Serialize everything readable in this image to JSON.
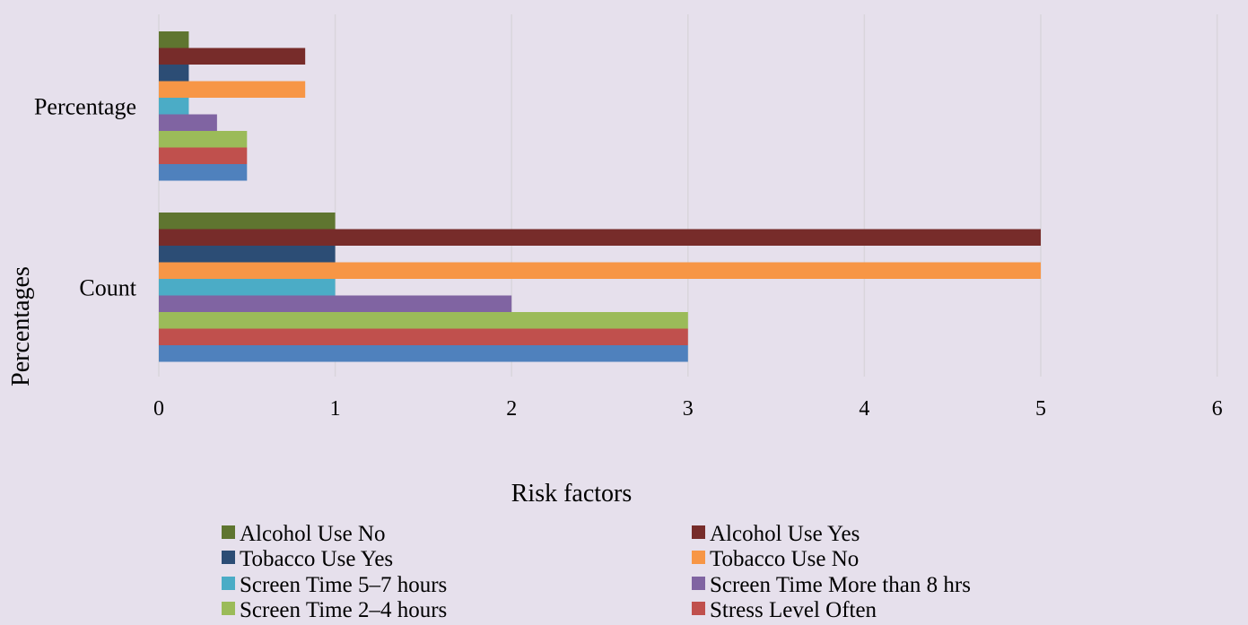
{
  "chart_data": {
    "type": "bar",
    "orientation": "horizontal",
    "categories": [
      "Count",
      "Percentage"
    ],
    "xlabel": "Risk factors",
    "ylabel": "Percentages",
    "xlim": [
      0,
      6
    ],
    "xticks": [
      0,
      1,
      2,
      3,
      4,
      5,
      6
    ],
    "grid": "vertical",
    "legend_position": "bottom",
    "series": [
      {
        "name": "Alcohol Use No",
        "values": [
          1,
          0.17
        ],
        "color": "#5f7530"
      },
      {
        "name": "Alcohol Use Yes",
        "values": [
          5,
          0.83
        ],
        "color": "#772c2a"
      },
      {
        "name": "Tobacco Use Yes",
        "values": [
          1,
          0.17
        ],
        "color": "#2c4d75"
      },
      {
        "name": "Tobacco Use No",
        "values": [
          5,
          0.83
        ],
        "color": "#f79646"
      },
      {
        "name": "Screen Time 5–7 hours",
        "values": [
          1,
          0.17
        ],
        "color": "#4bacc6"
      },
      {
        "name": "Screen Time More than 8 hrs",
        "values": [
          2,
          0.33
        ],
        "color": "#8064a2"
      },
      {
        "name": "Screen Time 2–4 hours",
        "values": [
          3,
          0.5
        ],
        "color": "#9bbb59"
      },
      {
        "name": "Stress Level Often",
        "values": [
          3,
          0.5
        ],
        "color": "#c0504d"
      },
      {
        "name": "",
        "values": [
          3,
          0.5
        ],
        "color": "#4f81bd"
      }
    ]
  }
}
